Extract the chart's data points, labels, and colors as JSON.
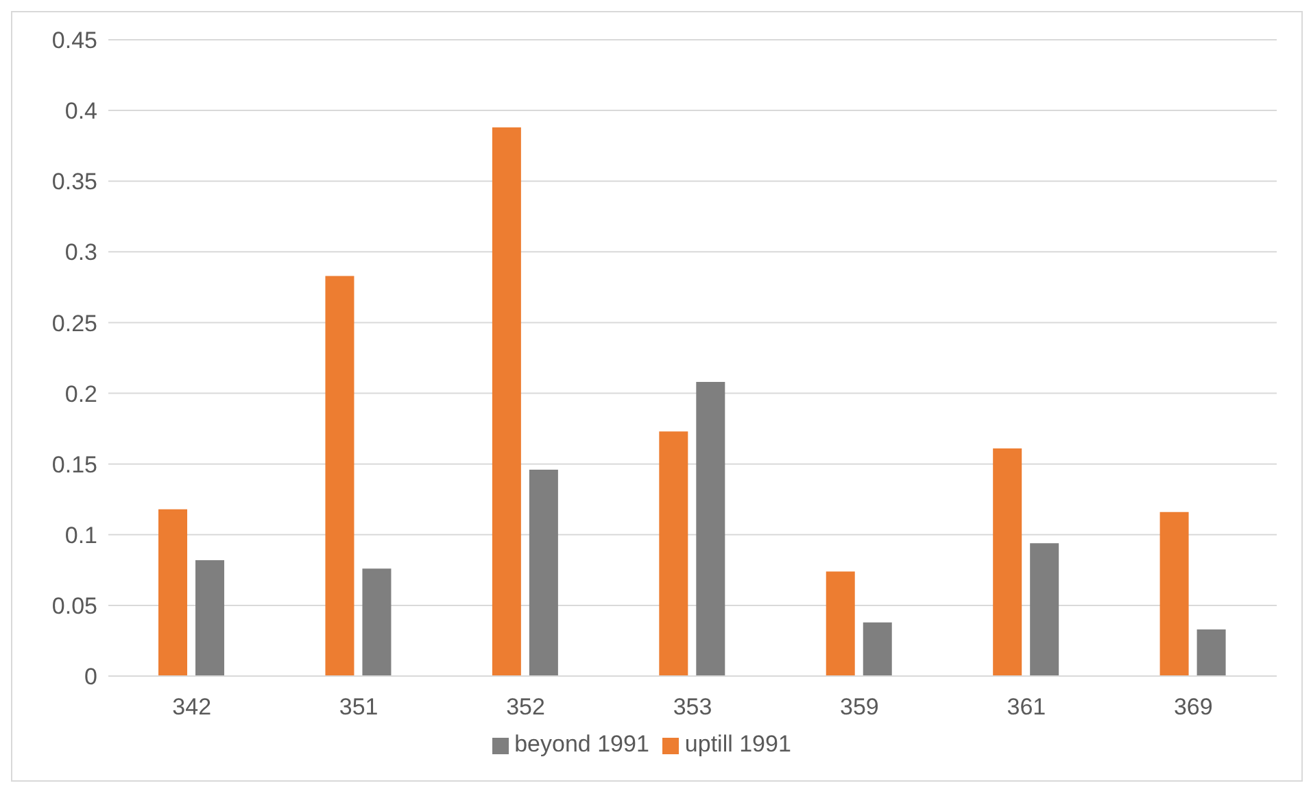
{
  "chart_data": {
    "type": "bar",
    "categories": [
      "342",
      "351",
      "352",
      "353",
      "359",
      "361",
      "369"
    ],
    "series": [
      {
        "name": "uptill 1991",
        "color": "#ed7d31",
        "values": [
          0.118,
          0.283,
          0.388,
          0.173,
          0.074,
          0.161,
          0.116
        ]
      },
      {
        "name": "beyond 1991",
        "color": "#7f7f7f",
        "values": [
          0.082,
          0.076,
          0.146,
          0.208,
          0.038,
          0.094,
          0.033
        ]
      }
    ],
    "ylim": [
      0,
      0.45
    ],
    "yticks": [
      0,
      0.05,
      0.1,
      0.15,
      0.2,
      0.25,
      0.3,
      0.35,
      0.4,
      0.45
    ],
    "grid": "y",
    "legend": "bottom"
  }
}
